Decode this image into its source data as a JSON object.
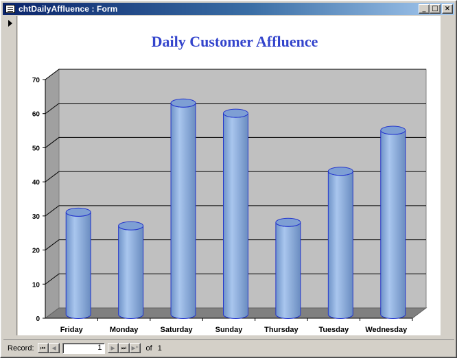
{
  "window": {
    "title": "chtDailyAffluence : Form",
    "minimize_label": "_",
    "maximize_label": "□",
    "close_label": "×"
  },
  "navigation": {
    "record_label": "Record:",
    "current_record": "1",
    "of_label": "of",
    "total_records": "1",
    "first_glyph": "⏮",
    "prev_glyph": "◀",
    "next_glyph": "▶",
    "last_glyph": "⏭",
    "new_glyph": "▶*"
  },
  "colors": {
    "title": "#3344cc",
    "wall": "#c0c0c0",
    "floor": "#808080",
    "bar": "#8fb2e3",
    "bar_edge": "#2233cc",
    "titlebar": "#0a246a"
  },
  "chart_data": {
    "type": "bar",
    "subtype": "3d-cylinder",
    "title": "Daily Customer Affluence",
    "categories": [
      "Friday",
      "Monday",
      "Saturday",
      "Sunday",
      "Thursday",
      "Tuesday",
      "Wednesday"
    ],
    "values": [
      30,
      26,
      62,
      59,
      27,
      42,
      54
    ],
    "ylim": [
      0,
      70
    ],
    "yticks": [
      "0",
      "10",
      "20",
      "30",
      "40",
      "50",
      "60",
      "70"
    ],
    "grid": true,
    "legend": "none"
  }
}
